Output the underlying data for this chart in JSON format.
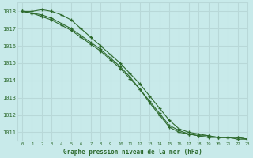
{
  "title": "Graphe pression niveau de la mer (hPa)",
  "background_color": "#c8eaea",
  "grid_color": "#b8d8d8",
  "line_color": "#2d6a2d",
  "marker_color": "#2d6a2d",
  "xlim": [
    -0.5,
    23
  ],
  "ylim": [
    1010.5,
    1018.5
  ],
  "yticks": [
    1011,
    1012,
    1013,
    1014,
    1015,
    1016,
    1017,
    1018
  ],
  "xticks": [
    0,
    1,
    2,
    3,
    4,
    5,
    6,
    7,
    8,
    9,
    10,
    11,
    12,
    13,
    14,
    15,
    16,
    17,
    18,
    19,
    20,
    21,
    22,
    23
  ],
  "series": [
    [
      1018.0,
      1017.9,
      1017.7,
      1017.5,
      1017.2,
      1016.9,
      1016.5,
      1016.1,
      1015.7,
      1015.2,
      1014.7,
      1014.1,
      1013.5,
      1012.8,
      1012.1,
      1011.4,
      1011.1,
      1010.9,
      1010.8,
      1010.8,
      1010.7,
      1010.7,
      1010.7,
      1010.6
    ],
    [
      1018.0,
      1017.9,
      1017.8,
      1017.6,
      1017.3,
      1017.0,
      1016.6,
      1016.2,
      1015.8,
      1015.3,
      1014.8,
      1014.2,
      1013.5,
      1012.7,
      1012.0,
      1011.3,
      1011.0,
      1010.9,
      1010.8,
      1010.7,
      1010.7,
      1010.7,
      1010.6,
      1010.6
    ],
    [
      1018.0,
      1018.0,
      1018.1,
      1018.0,
      1017.8,
      1017.5,
      1017.0,
      1016.5,
      1016.0,
      1015.5,
      1015.0,
      1014.4,
      1013.8,
      1013.1,
      1012.4,
      1011.7,
      1011.2,
      1011.0,
      1010.9,
      1010.8,
      1010.7,
      1010.7,
      1010.7,
      1010.6
    ]
  ]
}
